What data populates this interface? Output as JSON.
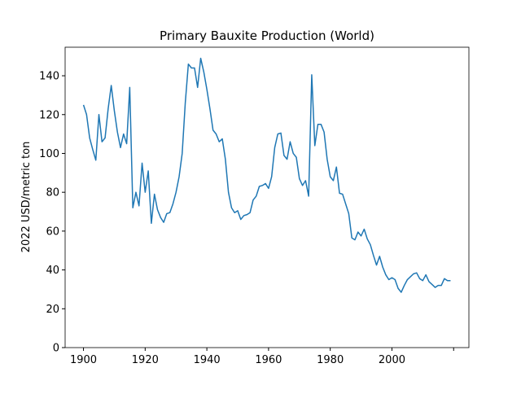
{
  "chart_data": {
    "type": "line",
    "title": "Primary Bauxite Production (World)",
    "y_label": "2022 USD/metric ton",
    "x": [
      1900,
      1901,
      1902,
      1903,
      1904,
      1905,
      1906,
      1907,
      1908,
      1909,
      1910,
      1911,
      1912,
      1913,
      1914,
      1915,
      1916,
      1917,
      1918,
      1919,
      1920,
      1921,
      1922,
      1923,
      1924,
      1925,
      1926,
      1927,
      1928,
      1929,
      1930,
      1931,
      1932,
      1933,
      1934,
      1935,
      1936,
      1937,
      1938,
      1939,
      1940,
      1941,
      1942,
      1943,
      1944,
      1945,
      1946,
      1947,
      1948,
      1949,
      1950,
      1951,
      1952,
      1953,
      1954,
      1955,
      1956,
      1957,
      1958,
      1959,
      1960,
      1961,
      1962,
      1963,
      1964,
      1965,
      1966,
      1967,
      1968,
      1969,
      1970,
      1971,
      1972,
      1973,
      1974,
      1975,
      1976,
      1977,
      1978,
      1979,
      1980,
      1981,
      1982,
      1983,
      1984,
      1985,
      1986,
      1987,
      1988,
      1989,
      1990,
      1991,
      1992,
      1993,
      1994,
      1995,
      1996,
      1997,
      1998,
      1999,
      2000,
      2001,
      2002,
      2003,
      2004,
      2005,
      2006,
      2007,
      2008,
      2009,
      2010,
      2011,
      2012,
      2013,
      2014,
      2015,
      2016,
      2017,
      2018,
      2019
    ],
    "series": [
      {
        "name": "World",
        "color": "#1f77b4",
        "values": [
          125,
          120,
          108,
          102,
          96.5,
          120,
          106,
          108,
          123,
          135,
          122,
          111,
          103,
          110,
          105,
          134,
          72,
          80,
          73,
          95,
          80,
          91,
          64,
          79,
          71,
          67,
          64.5,
          69,
          69.5,
          74,
          80,
          88,
          100,
          126,
          146,
          144,
          144,
          134,
          149,
          142,
          133,
          123,
          112,
          110,
          106,
          107.5,
          97,
          80,
          72,
          69.5,
          70.5,
          66,
          68,
          68.5,
          69.5,
          76,
          78,
          83,
          83.5,
          84.5,
          82,
          88,
          103,
          110,
          110.5,
          99,
          97,
          106,
          100,
          98,
          87,
          83.5,
          86,
          78,
          140.5,
          104,
          115,
          115,
          111,
          97,
          88,
          86,
          93,
          79.5,
          79,
          74,
          69,
          56.5,
          55.5,
          59.5,
          57.5,
          61,
          56,
          53,
          47.5,
          42.5,
          47,
          41.5,
          37.5,
          35,
          36,
          35,
          30.5,
          28.5,
          32,
          35,
          36.5,
          38,
          38.5,
          35.5,
          34.5,
          37.5,
          34,
          32.5,
          31,
          32,
          32,
          35.5,
          34.5,
          34.5
        ]
      }
    ],
    "xlim": [
      1894.05,
      2024.95
    ],
    "xticks": [
      1900,
      1920,
      1940,
      1960,
      1980,
      2000,
      {
        "value": 2020,
        "label": null
      }
    ],
    "ylim": [
      0,
      154.7
    ],
    "yticks": [
      0,
      20,
      40,
      60,
      80,
      100,
      120,
      140
    ],
    "grid": false
  }
}
